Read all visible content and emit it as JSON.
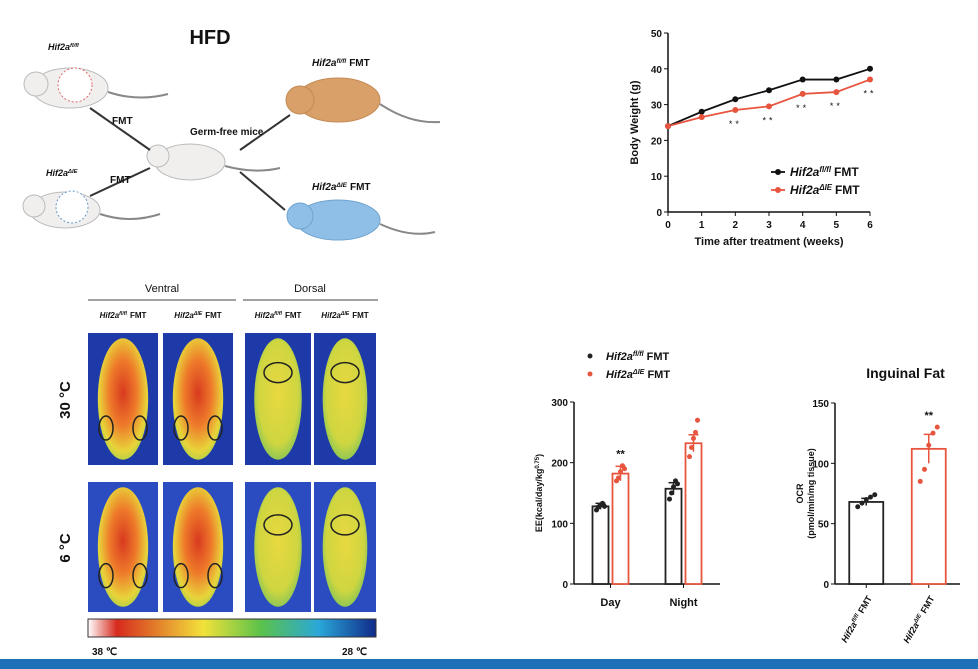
{
  "diagram": {
    "title": "HFD",
    "donors": [
      {
        "gene": "Hif2a",
        "sup": "fl/fl"
      },
      {
        "gene": "Hif2a",
        "sup": "ΔIE"
      }
    ],
    "transfer": [
      "FMT",
      "FMT"
    ],
    "recipient": "Germ-free mice",
    "outcomes": [
      {
        "gene": "Hif2a",
        "sup": "fl/fl",
        "suffix": "FMT"
      },
      {
        "gene": "Hif2a",
        "sup": "ΔIE",
        "suffix": "FMT"
      }
    ]
  },
  "thermal": {
    "groups": [
      "Ventral",
      "Dorsal"
    ],
    "columns": [
      {
        "gene": "Hif2a",
        "sup": "fl/fl",
        "suffix": "FMT"
      },
      {
        "gene": "Hif2a",
        "sup": "ΔIE",
        "suffix": "FMT"
      },
      {
        "gene": "Hif2a",
        "sup": "fl/fl",
        "suffix": "FMT"
      },
      {
        "gene": "Hif2a",
        "sup": "ΔIE",
        "suffix": "FMT"
      }
    ],
    "rows": [
      "30 °C",
      "6 °C"
    ],
    "scale": [
      "38 ℃",
      "28 ℃"
    ]
  },
  "chart_data": [
    {
      "type": "line",
      "ylabel": "Body Weight (g)",
      "xlabel": "Time after treatment (weeks)",
      "x": [
        0,
        1,
        2,
        3,
        4,
        5,
        6
      ],
      "xlim": [
        0,
        6
      ],
      "xticks": [
        0,
        1,
        2,
        3,
        4,
        5,
        6
      ],
      "ylim": [
        0,
        50
      ],
      "yticks": [
        0,
        10,
        20,
        30,
        40,
        50
      ],
      "series": [
        {
          "name": "Hif2a",
          "sup": "fl/fl",
          "suffix": "FMT",
          "color": "#111111",
          "values": [
            24,
            28,
            31.5,
            34,
            37,
            37,
            40
          ]
        },
        {
          "name": "Hif2a",
          "sup": "ΔIE",
          "suffix": "FMT",
          "color": "#e8553f",
          "values": [
            24,
            26.5,
            28.5,
            29.5,
            33,
            33.5,
            37
          ]
        }
      ],
      "annotations": [
        {
          "x": 2,
          "text": "**"
        },
        {
          "x": 3,
          "text": "**"
        },
        {
          "x": 4,
          "text": "**"
        },
        {
          "x": 5,
          "text": "**"
        },
        {
          "x": 6,
          "text": "**"
        }
      ]
    },
    {
      "type": "bar",
      "ylabel": "EE(kcal/day/kg",
      "ylabel_sup": "0.75",
      "ylabel_end": ")",
      "categories": [
        "Day",
        "Night"
      ],
      "ylim": [
        0,
        300
      ],
      "yticks": [
        0,
        100,
        200,
        300
      ],
      "series": [
        {
          "name": "Hif2a",
          "sup": "fl/fl",
          "suffix": "FMT",
          "color": "#222222",
          "values": [
            128,
            157
          ],
          "errors": [
            5,
            10
          ],
          "points": [
            [
              122,
              127,
              130,
              133,
              128
            ],
            [
              140,
              150,
              160,
              170,
              165
            ]
          ]
        },
        {
          "name": "Hif2a",
          "sup": "ΔIE",
          "suffix": "FMT",
          "color": "#e8553f",
          "values": [
            182,
            232
          ],
          "errors": [
            12,
            14
          ],
          "points": [
            [
              170,
              175,
              185,
              195,
              190
            ],
            [
              210,
              225,
              240,
              250,
              270
            ]
          ]
        }
      ],
      "annotations": [
        {
          "category": 0,
          "text": "**"
        }
      ]
    },
    {
      "type": "bar",
      "title": "Inguinal Fat",
      "ylabel": "OCR",
      "ylabel2": "(pmol/min/mg tissue)",
      "categories": [
        {
          "gene": "Hif2a",
          "sup": "fl/fl",
          "suffix": "FMT"
        },
        {
          "gene": "Hif2a",
          "sup": "ΔIE",
          "suffix": "FMT"
        }
      ],
      "ylim": [
        0,
        150
      ],
      "yticks": [
        0,
        50,
        100,
        150
      ],
      "series": [
        {
          "color": "#222222",
          "values": [
            68,
            112
          ],
          "errors": [
            3,
            12
          ],
          "points": [
            [
              64,
              67,
              70,
              72,
              74
            ],
            [
              85,
              95,
              115,
              125,
              130
            ]
          ]
        }
      ],
      "annotations": [
        {
          "category": 1,
          "text": "**"
        }
      ]
    }
  ]
}
